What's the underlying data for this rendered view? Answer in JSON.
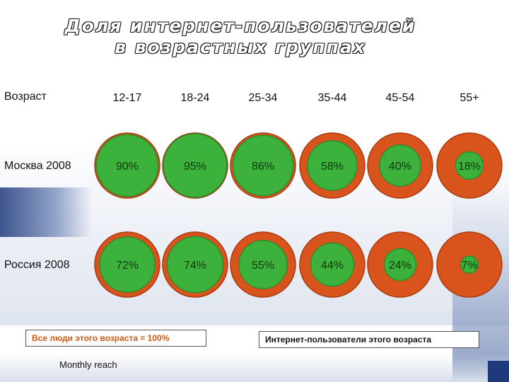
{
  "title_line1": "Доля интернет-пользователей",
  "title_line2": "в возрастных группах",
  "age_label": "Возраст",
  "legend_all_people": "Все люди этого возраста = 100%",
  "legend_internet_users": "Интернет-пользователи этого возраста",
  "footnote": "Monthly reach",
  "colors": {
    "outer": "#d9531c",
    "inner": "#3cb23c",
    "inner_edge": "#2b8f2b"
  },
  "chart_data": {
    "type": "bubble",
    "categories": [
      "12-17",
      "18-24",
      "25-34",
      "35-44",
      "45-54",
      "55+"
    ],
    "series": [
      {
        "name": "Москва 2008",
        "values": [
          90,
          95,
          86,
          58,
          40,
          18
        ]
      },
      {
        "name": "Россия 2008",
        "values": [
          72,
          74,
          55,
          44,
          24,
          7
        ]
      }
    ],
    "value_suffix": "%"
  }
}
